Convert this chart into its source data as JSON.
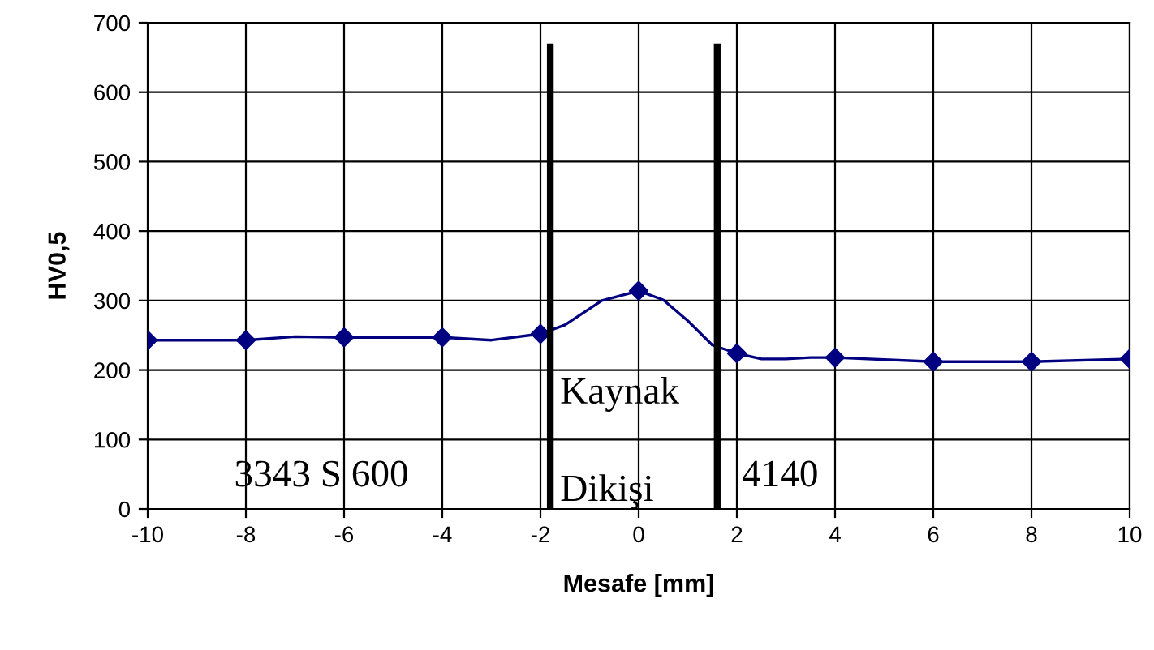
{
  "chart_data": {
    "type": "line",
    "xlabel": "Mesafe [mm]",
    "ylabel": "HV0,5",
    "series": [
      {
        "color": "#000080",
        "marker": "none",
        "x": [
          -10,
          -8,
          -7,
          -6,
          -4,
          -3,
          -2,
          -1.5,
          -0.75,
          0,
          0.5,
          1,
          1.5,
          2,
          2.5,
          3,
          3.5,
          4,
          6,
          8,
          10
        ],
        "values": [
          243,
          243,
          248,
          247,
          247,
          243,
          252,
          265,
          300,
          314,
          301,
          271,
          236,
          224,
          216,
          216,
          218,
          218,
          212,
          212,
          216
        ]
      },
      {
        "type": "scatter",
        "color": "#000080",
        "marker": "diamond",
        "x": [
          -10,
          -8,
          -6,
          -4,
          -2,
          0,
          2,
          4,
          6,
          8,
          10
        ],
        "values": [
          243,
          243,
          247,
          247,
          252,
          314,
          224,
          218,
          212,
          212,
          216
        ]
      }
    ],
    "xlim": [
      -10,
      10
    ],
    "xticks": [
      -10,
      -8,
      -6,
      -4,
      -2,
      0,
      2,
      4,
      6,
      8,
      10
    ],
    "ylim": [
      0,
      700
    ],
    "yticks": [
      0,
      100,
      200,
      300,
      400,
      500,
      600,
      700
    ],
    "grid": true,
    "ref_lines": [
      {
        "axis": "x",
        "value": -1.8,
        "color": "#000000"
      },
      {
        "axis": "x",
        "value": 1.6,
        "color": "#000000"
      }
    ],
    "annotations": [
      "3343 S 600",
      "Kaynak",
      "Dikişi",
      "4140"
    ]
  }
}
